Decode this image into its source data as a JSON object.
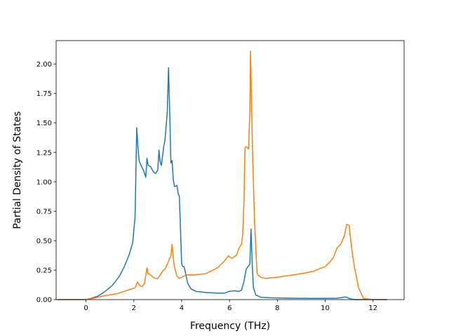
{
  "chart_data": {
    "type": "line",
    "title": "",
    "xlabel": "Frequency (THz)",
    "ylabel": "Partial Density of States",
    "xlim": [
      -1.25,
      13.3
    ],
    "ylim": [
      0.0,
      2.2
    ],
    "xticks": [
      0,
      2,
      4,
      6,
      8,
      10,
      12
    ],
    "xtick_labels": [
      "0",
      "2",
      "4",
      "6",
      "8",
      "10",
      "12"
    ],
    "yticks": [
      0.0,
      0.25,
      0.5,
      0.75,
      1.0,
      1.25,
      1.5,
      1.75,
      2.0
    ],
    "ytick_labels": [
      "0.00",
      "0.25",
      "0.50",
      "0.75",
      "1.00",
      "1.25",
      "1.50",
      "1.75",
      "2.00"
    ],
    "grid": false,
    "legend": "none",
    "series": [
      {
        "color": "#1f77b4",
        "x": [
          -1.2,
          0.0,
          0.2,
          0.5,
          0.8,
          1.1,
          1.4,
          1.6,
          1.8,
          1.95,
          2.05,
          2.12,
          2.17,
          2.22,
          2.3,
          2.4,
          2.5,
          2.55,
          2.6,
          2.7,
          2.8,
          2.9,
          3.0,
          3.05,
          3.1,
          3.15,
          3.25,
          3.3,
          3.4,
          3.45,
          3.5,
          3.55,
          3.6,
          3.65,
          3.7,
          3.8,
          3.85,
          3.9,
          4.0,
          4.05,
          4.1,
          4.25,
          4.3,
          4.4,
          4.6,
          5.0,
          5.5,
          5.8,
          6.0,
          6.2,
          6.4,
          6.5,
          6.6,
          6.7,
          6.85,
          6.9,
          6.95,
          7.0,
          7.1,
          7.3,
          7.8,
          8.5,
          9.5,
          10.0,
          10.5,
          10.7,
          10.8,
          10.9,
          11.0,
          11.2,
          11.4,
          11.8,
          12.6
        ],
        "y": [
          0.0,
          0.0,
          0.01,
          0.03,
          0.07,
          0.12,
          0.2,
          0.28,
          0.38,
          0.48,
          0.7,
          1.46,
          1.3,
          1.18,
          1.14,
          1.1,
          1.04,
          1.2,
          1.14,
          1.13,
          1.09,
          1.07,
          1.1,
          1.27,
          1.17,
          1.14,
          1.3,
          1.35,
          1.6,
          1.97,
          1.6,
          1.16,
          1.18,
          1.02,
          0.96,
          0.97,
          0.9,
          0.88,
          0.3,
          0.28,
          0.28,
          0.14,
          0.12,
          0.09,
          0.07,
          0.06,
          0.055,
          0.055,
          0.07,
          0.075,
          0.07,
          0.08,
          0.15,
          0.26,
          0.3,
          0.6,
          0.3,
          0.1,
          0.04,
          0.02,
          0.015,
          0.012,
          0.01,
          0.01,
          0.012,
          0.018,
          0.022,
          0.02,
          0.01,
          0.0,
          0.0,
          0.0,
          0.0
        ]
      },
      {
        "color": "#ff7f0e",
        "x": [
          -1.2,
          0.0,
          0.3,
          0.7,
          1.0,
          1.3,
          1.6,
          1.9,
          2.05,
          2.15,
          2.25,
          2.35,
          2.45,
          2.55,
          2.6,
          2.7,
          2.8,
          2.9,
          3.0,
          3.1,
          3.2,
          3.3,
          3.4,
          3.5,
          3.55,
          3.6,
          3.65,
          3.7,
          3.8,
          3.9,
          4.0,
          4.2,
          4.5,
          5.0,
          5.5,
          5.8,
          5.95,
          6.1,
          6.3,
          6.4,
          6.5,
          6.55,
          6.6,
          6.65,
          6.7,
          6.8,
          6.85,
          6.88,
          6.92,
          6.96,
          7.05,
          7.15,
          7.3,
          7.5,
          8.0,
          9.0,
          9.5,
          10.0,
          10.2,
          10.35,
          10.5,
          10.65,
          10.8,
          10.9,
          11.0,
          11.1,
          11.2,
          11.4,
          11.6,
          12.0,
          12.6
        ],
        "y": [
          0.0,
          0.0,
          0.01,
          0.03,
          0.04,
          0.05,
          0.07,
          0.09,
          0.1,
          0.15,
          0.12,
          0.11,
          0.14,
          0.27,
          0.22,
          0.21,
          0.19,
          0.18,
          0.18,
          0.21,
          0.24,
          0.26,
          0.3,
          0.35,
          0.37,
          0.47,
          0.35,
          0.28,
          0.2,
          0.18,
          0.19,
          0.21,
          0.21,
          0.22,
          0.27,
          0.33,
          0.37,
          0.35,
          0.38,
          0.44,
          0.47,
          0.55,
          0.8,
          1.29,
          1.3,
          1.28,
          1.6,
          2.11,
          1.7,
          1.27,
          0.65,
          0.22,
          0.19,
          0.18,
          0.19,
          0.22,
          0.24,
          0.28,
          0.32,
          0.36,
          0.44,
          0.47,
          0.54,
          0.64,
          0.63,
          0.45,
          0.3,
          0.1,
          0.01,
          0.0,
          0.0
        ]
      }
    ]
  }
}
